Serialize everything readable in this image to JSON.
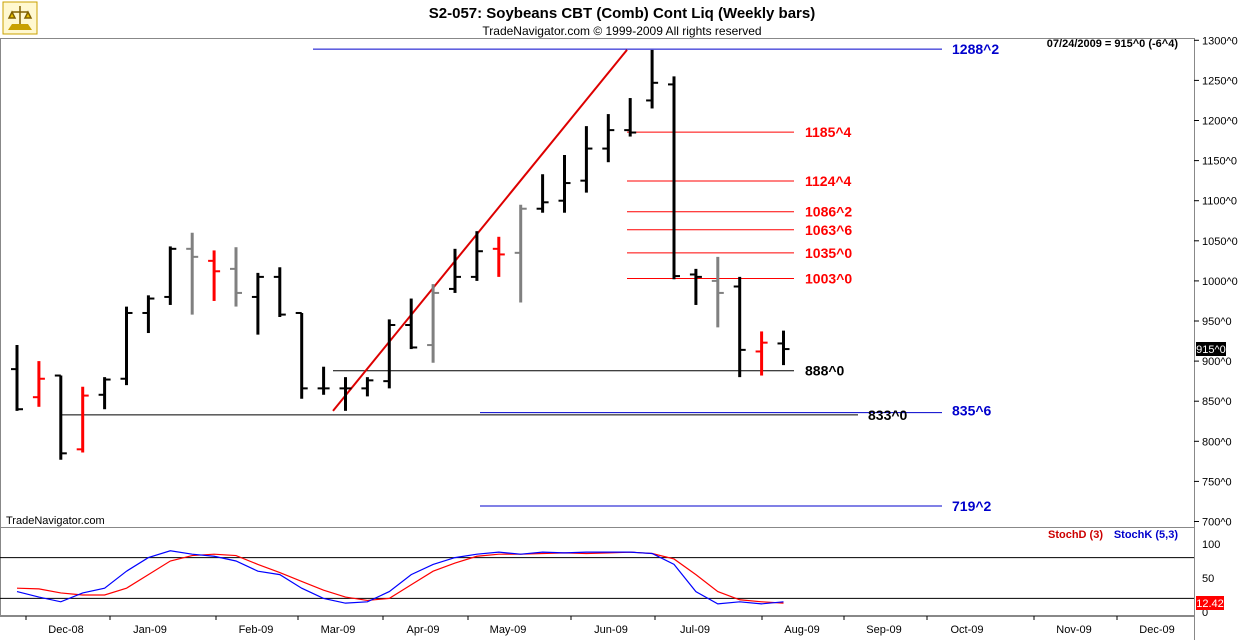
{
  "header": {
    "title": "S2-057:  Soybeans CBT (Comb) Cont Liq  (Weekly bars)",
    "subtitle": "TradeNavigator.com © 1999-2009 All rights reserved",
    "info": "07/24/2009 = 915^0 (-6^4)",
    "watermark": "TradeNavigator.com",
    "last_price": "915^0"
  },
  "colors": {
    "up": "#000000",
    "down": "#ff0000",
    "neutral": "#808080",
    "blue_line": "#0000cc",
    "red_line": "#ff0000",
    "stochD": "#ff0000",
    "stochK": "#0000ff"
  },
  "chart_data": [
    {
      "type": "bar",
      "subtype": "ohlc",
      "x_axis_labels": [
        "Dec-08",
        "Jan-09",
        "Feb-09",
        "Mar-09",
        "Apr-09",
        "May-09",
        "Jun-09",
        "Jul-09",
        "Aug-09",
        "Sep-09",
        "Oct-09",
        "Nov-09",
        "Dec-09"
      ],
      "y_ticks": [
        "700^0",
        "750^0",
        "800^0",
        "850^0",
        "900^0",
        "950^0",
        "1000^0",
        "1050^0",
        "1100^0",
        "1150^0",
        "1200^0",
        "1250^0",
        "1300^0"
      ],
      "ylim": [
        700,
        1300
      ],
      "bars": [
        {
          "w": 0,
          "o": 890,
          "h": 920,
          "l": 838,
          "c": 840,
          "col": "black"
        },
        {
          "w": 1,
          "o": 855,
          "h": 900,
          "l": 843,
          "c": 878,
          "col": "red"
        },
        {
          "w": 2,
          "o": 882,
          "h": 882,
          "l": 777,
          "c": 785,
          "col": "black"
        },
        {
          "w": 3,
          "o": 790,
          "h": 868,
          "l": 786,
          "c": 857,
          "col": "red"
        },
        {
          "w": 4,
          "o": 858,
          "h": 880,
          "l": 840,
          "c": 877,
          "col": "black"
        },
        {
          "w": 5,
          "o": 878,
          "h": 968,
          "l": 870,
          "c": 960,
          "col": "black"
        },
        {
          "w": 6,
          "o": 960,
          "h": 982,
          "l": 935,
          "c": 978,
          "col": "black"
        },
        {
          "w": 7,
          "o": 980,
          "h": 1043,
          "l": 970,
          "c": 1040,
          "col": "black"
        },
        {
          "w": 8,
          "o": 1040,
          "h": 1060,
          "l": 958,
          "c": 1030,
          "col": "gray"
        },
        {
          "w": 9,
          "o": 1025,
          "h": 1038,
          "l": 975,
          "c": 1012,
          "col": "red"
        },
        {
          "w": 10,
          "o": 1015,
          "h": 1042,
          "l": 968,
          "c": 985,
          "col": "gray"
        },
        {
          "w": 11,
          "o": 980,
          "h": 1010,
          "l": 933,
          "c": 1005,
          "col": "black"
        },
        {
          "w": 12,
          "o": 1005,
          "h": 1017,
          "l": 955,
          "c": 958,
          "col": "black"
        },
        {
          "w": 13,
          "o": 960,
          "h": 960,
          "l": 853,
          "c": 866,
          "col": "black"
        },
        {
          "w": 14,
          "o": 866,
          "h": 893,
          "l": 858,
          "c": 866,
          "col": "black"
        },
        {
          "w": 15,
          "o": 866,
          "h": 880,
          "l": 838,
          "c": 866,
          "col": "black"
        },
        {
          "w": 16,
          "o": 866,
          "h": 880,
          "l": 856,
          "c": 876,
          "col": "black"
        },
        {
          "w": 17,
          "o": 875,
          "h": 952,
          "l": 866,
          "c": 945,
          "col": "black"
        },
        {
          "w": 18,
          "o": 945,
          "h": 978,
          "l": 915,
          "c": 917,
          "col": "black"
        },
        {
          "w": 19,
          "o": 920,
          "h": 996,
          "l": 898,
          "c": 985,
          "col": "gray"
        },
        {
          "w": 20,
          "o": 990,
          "h": 1040,
          "l": 985,
          "c": 1005,
          "col": "black"
        },
        {
          "w": 21,
          "o": 1005,
          "h": 1062,
          "l": 1000,
          "c": 1037,
          "col": "black"
        },
        {
          "w": 22,
          "o": 1040,
          "h": 1055,
          "l": 1005,
          "c": 1033,
          "col": "red"
        },
        {
          "w": 23,
          "o": 1035,
          "h": 1095,
          "l": 973,
          "c": 1090,
          "col": "gray"
        },
        {
          "w": 24,
          "o": 1090,
          "h": 1133,
          "l": 1085,
          "c": 1098,
          "col": "black"
        },
        {
          "w": 25,
          "o": 1100,
          "h": 1157,
          "l": 1085,
          "c": 1122,
          "col": "black"
        },
        {
          "w": 26,
          "o": 1125,
          "h": 1193,
          "l": 1110,
          "c": 1165,
          "col": "black"
        },
        {
          "w": 27,
          "o": 1165,
          "h": 1208,
          "l": 1148,
          "c": 1188,
          "col": "black"
        },
        {
          "w": 28,
          "o": 1188,
          "h": 1228,
          "l": 1180,
          "c": 1185,
          "col": "black"
        },
        {
          "w": 29,
          "o": 1225,
          "h": 1288,
          "l": 1215,
          "c": 1247,
          "col": "black"
        },
        {
          "w": 30,
          "o": 1245,
          "h": 1255,
          "l": 1002,
          "c": 1006,
          "col": "black"
        },
        {
          "w": 31,
          "o": 1008,
          "h": 1015,
          "l": 970,
          "c": 1005,
          "col": "black"
        },
        {
          "w": 32,
          "o": 1000,
          "h": 1030,
          "l": 942,
          "c": 985,
          "col": "gray"
        },
        {
          "w": 33,
          "o": 993,
          "h": 1005,
          "l": 880,
          "c": 914,
          "col": "black"
        },
        {
          "w": 34,
          "o": 912,
          "h": 937,
          "l": 882,
          "c": 923,
          "col": "red"
        },
        {
          "w": 35,
          "o": 922,
          "h": 938,
          "l": 895,
          "c": 915,
          "col": "black"
        }
      ],
      "levels": [
        {
          "label": "1288^2",
          "value": 1289,
          "color": "blue"
        },
        {
          "label": "1185^4",
          "value": 1185.5,
          "color": "red"
        },
        {
          "label": "1124^4",
          "value": 1124.5,
          "color": "red"
        },
        {
          "label": "1086^2",
          "value": 1086.25,
          "color": "red"
        },
        {
          "label": "1063^6",
          "value": 1063.75,
          "color": "red"
        },
        {
          "label": "1035^0",
          "value": 1035,
          "color": "red"
        },
        {
          "label": "1003^0",
          "value": 1003,
          "color": "red"
        },
        {
          "label": "888^0",
          "value": 888,
          "color": "black"
        },
        {
          "label": "835^6",
          "value": 835.75,
          "color": "blue"
        },
        {
          "label": "833^0",
          "value": 833,
          "color": "black"
        },
        {
          "label": "719^2",
          "value": 719.25,
          "color": "blue"
        }
      ]
    },
    {
      "type": "line",
      "title": "StochD (3)   StochK (5,3)",
      "y_ticks": [
        "0",
        "50",
        "100"
      ],
      "ylim": [
        0,
        110
      ],
      "reference_lines": [
        20,
        80
      ],
      "last_value": "12.42",
      "series": [
        {
          "name": "StochD (3)",
          "values": [
            35,
            34,
            28,
            25,
            25,
            35,
            55,
            75,
            83,
            85,
            83,
            70,
            58,
            45,
            32,
            22,
            17,
            20,
            40,
            60,
            72,
            82,
            85,
            85,
            86,
            87,
            86,
            87,
            88,
            86,
            78,
            55,
            30,
            18,
            15,
            13
          ]
        },
        {
          "name": "StochK (5,3)",
          "values": [
            30,
            22,
            15,
            28,
            35,
            60,
            80,
            90,
            85,
            82,
            75,
            60,
            55,
            35,
            20,
            13,
            15,
            30,
            55,
            70,
            80,
            85,
            88,
            85,
            88,
            87,
            88,
            88,
            88,
            86,
            70,
            30,
            12,
            15,
            12,
            15
          ]
        }
      ]
    }
  ]
}
